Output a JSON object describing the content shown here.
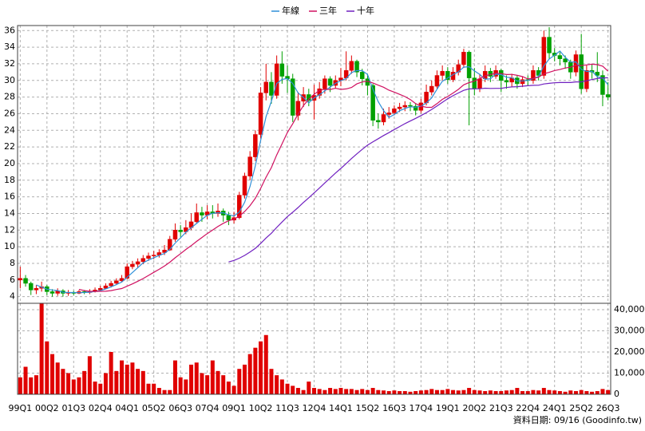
{
  "chart_data": {
    "type": "candlestick",
    "legend": "top",
    "grid": true,
    "categories": [
      "99Q1",
      null,
      null,
      null,
      null,
      "00Q2",
      null,
      null,
      null,
      null,
      "01Q3",
      null,
      null,
      null,
      null,
      "02Q4",
      null,
      null,
      null,
      null,
      "04Q1",
      null,
      null,
      null,
      null,
      "05Q2",
      null,
      null,
      null,
      null,
      "06Q3",
      null,
      null,
      null,
      null,
      "07Q4",
      null,
      null,
      null,
      null,
      "09Q1",
      null,
      null,
      null,
      null,
      "10Q2",
      null,
      null,
      null,
      null,
      "11Q3",
      null,
      null,
      null,
      null,
      "12Q4",
      null,
      null,
      null,
      null,
      "14Q1",
      null,
      null,
      null,
      null,
      "15Q2",
      null,
      null,
      null,
      null,
      "16Q3",
      null,
      null,
      null,
      null,
      "17Q4",
      null,
      null,
      null,
      null,
      "19Q1",
      null,
      null,
      null,
      null,
      "20Q2",
      null,
      null,
      null,
      null,
      "21Q3",
      null,
      null,
      null,
      null,
      "22Q4",
      null,
      null,
      null,
      null,
      "24Q1",
      null,
      null,
      null,
      null,
      "25Q2",
      null,
      null,
      null,
      null,
      "26Q3"
    ],
    "open": [
      6.0,
      6.2,
      5.6,
      4.8,
      5.0,
      5.2,
      4.6,
      4.4,
      4.7,
      4.4,
      4.5,
      4.4,
      4.6,
      4.5,
      4.6,
      4.8,
      5.0,
      5.3,
      5.6,
      5.9,
      6.2,
      7.6,
      7.9,
      8.2,
      8.6,
      8.9,
      9.0,
      9.3,
      9.6,
      10.9,
      12.0,
      11.8,
      12.3,
      13.0,
      14.1,
      13.8,
      14.2,
      14.0,
      14.3,
      13.8,
      13.2,
      13.5,
      16.2,
      18.5,
      20.8,
      23.5,
      28.5,
      29.8,
      28.2,
      32.0,
      30.5,
      30.2,
      25.8,
      27.5,
      28.3,
      27.6,
      28.2,
      29.0,
      30.2,
      29.4,
      30.0,
      30.3,
      31.2,
      32.3,
      31.0,
      30.2,
      29.4,
      25.2,
      25.0,
      25.9,
      26.1,
      26.6,
      26.8,
      27.0,
      26.9,
      26.4,
      27.3,
      28.6,
      29.3,
      30.6,
      31.1,
      30.1,
      31.0,
      31.9,
      33.4,
      30.3,
      29.0,
      30.2,
      31.1,
      30.5,
      31.2,
      30.0,
      29.8,
      30.3,
      29.6,
      30.1,
      30.0,
      31.2,
      30.6,
      35.2,
      33.3,
      33.0,
      32.6,
      32.2,
      31.0,
      33.1,
      29.0,
      31.2,
      31.0,
      30.6,
      28.3
    ],
    "high": [
      7.6,
      6.6,
      5.8,
      5.4,
      5.8,
      5.4,
      4.9,
      5.0,
      4.9,
      4.8,
      4.7,
      4.8,
      4.8,
      4.9,
      5.1,
      5.3,
      5.6,
      5.9,
      6.2,
      6.6,
      8.0,
      8.3,
      8.6,
      9.0,
      9.3,
      9.5,
      9.7,
      10.2,
      11.3,
      12.8,
      12.6,
      13.2,
      14.0,
      15.2,
      14.8,
      15.0,
      15.0,
      15.2,
      14.6,
      14.2,
      14.2,
      16.6,
      18.9,
      21.5,
      24.0,
      29.2,
      32.0,
      31.0,
      33.0,
      33.5,
      31.8,
      30.8,
      28.6,
      29.2,
      29.0,
      29.5,
      29.8,
      30.6,
      30.5,
      30.6,
      31.5,
      33.5,
      33.0,
      32.5,
      31.4,
      30.8,
      29.6,
      26.0,
      26.6,
      26.8,
      27.0,
      27.3,
      27.5,
      27.4,
      27.2,
      27.8,
      29.5,
      30.0,
      31.2,
      31.8,
      31.6,
      31.6,
      32.5,
      33.8,
      33.6,
      31.5,
      30.8,
      31.8,
      31.5,
      31.8,
      31.4,
      30.6,
      30.8,
      30.6,
      30.5,
      30.6,
      31.8,
      31.6,
      36.0,
      36.4,
      33.9,
      33.4,
      33.0,
      32.5,
      33.6,
      35.6,
      31.8,
      32.0,
      33.4,
      31.2,
      29.8
    ],
    "low": [
      5.0,
      5.2,
      4.2,
      4.3,
      4.6,
      4.2,
      4.0,
      4.1,
      4.0,
      4.1,
      4.2,
      4.3,
      4.3,
      4.3,
      4.5,
      4.7,
      4.9,
      5.1,
      5.4,
      5.7,
      6.1,
      7.3,
      7.5,
      7.9,
      8.3,
      8.5,
      8.7,
      9.0,
      9.5,
      10.6,
      11.2,
      11.5,
      12.0,
      12.8,
      13.0,
      13.3,
      13.4,
      13.6,
      13.0,
      12.6,
      12.8,
      13.3,
      15.8,
      18.0,
      20.3,
      23.0,
      27.6,
      27.2,
      27.8,
      29.6,
      28.5,
      25.0,
      25.2,
      26.8,
      26.9,
      25.3,
      27.8,
      28.4,
      28.6,
      29.0,
      29.3,
      30.0,
      30.8,
      30.4,
      29.4,
      28.2,
      24.5,
      24.2,
      24.6,
      25.4,
      25.8,
      26.2,
      26.3,
      26.3,
      25.8,
      26.1,
      27.0,
      28.2,
      29.0,
      30.0,
      29.6,
      29.8,
      30.6,
      31.5,
      24.6,
      28.2,
      28.6,
      29.8,
      29.8,
      30.2,
      28.6,
      29.0,
      29.2,
      29.0,
      29.2,
      29.4,
      29.6,
      30.0,
      30.2,
      32.6,
      32.3,
      31.8,
      31.4,
      30.2,
      30.5,
      28.4,
      28.6,
      30.2,
      29.8,
      26.9,
      27.6
    ],
    "close": [
      6.2,
      5.6,
      4.8,
      5.0,
      5.2,
      4.6,
      4.4,
      4.7,
      4.4,
      4.5,
      4.4,
      4.6,
      4.5,
      4.6,
      4.8,
      5.0,
      5.3,
      5.6,
      5.9,
      6.2,
      7.6,
      7.9,
      8.2,
      8.6,
      8.9,
      9.0,
      9.3,
      9.6,
      10.9,
      12.0,
      11.8,
      12.3,
      13.0,
      14.1,
      13.8,
      14.2,
      14.0,
      14.3,
      13.8,
      13.2,
      13.5,
      16.2,
      18.5,
      20.8,
      23.5,
      28.5,
      29.8,
      28.2,
      32.0,
      30.5,
      30.2,
      25.8,
      27.5,
      28.3,
      27.6,
      28.2,
      29.0,
      30.2,
      29.4,
      30.0,
      30.3,
      31.2,
      32.3,
      31.0,
      30.2,
      29.4,
      25.2,
      25.0,
      25.9,
      26.1,
      26.6,
      26.8,
      27.0,
      26.9,
      26.4,
      27.3,
      28.6,
      29.3,
      30.6,
      31.1,
      30.1,
      31.0,
      31.9,
      33.4,
      30.3,
      29.0,
      30.2,
      31.1,
      30.5,
      31.2,
      30.0,
      29.8,
      30.3,
      29.6,
      30.1,
      30.0,
      31.2,
      30.6,
      35.2,
      33.3,
      33.0,
      32.6,
      32.2,
      31.0,
      33.1,
      29.0,
      31.2,
      31.0,
      30.6,
      28.3,
      28.0
    ],
    "up_color": "#e00000",
    "down_color": "#00a000",
    "ylim": [
      3.2,
      36.6
    ],
    "yticks": [
      4,
      6,
      8,
      10,
      12,
      14,
      16,
      18,
      20,
      22,
      24,
      26,
      28,
      30,
      32,
      34,
      36
    ],
    "series": [
      {
        "name": "年線",
        "color": "#2f8fd8",
        "values": [
          null,
          null,
          null,
          5.4,
          5.15,
          4.9,
          4.8,
          4.73,
          4.53,
          4.5,
          4.5,
          4.48,
          4.5,
          4.53,
          4.63,
          4.73,
          4.93,
          5.18,
          5.45,
          5.75,
          6.33,
          6.9,
          7.48,
          8.08,
          8.4,
          8.68,
          8.95,
          9.2,
          9.7,
          10.45,
          11.08,
          11.75,
          12.28,
          12.8,
          13.3,
          13.78,
          14.03,
          14.08,
          14.08,
          13.83,
          13.7,
          14.18,
          15.35,
          17.25,
          19.75,
          22.83,
          25.65,
          27.5,
          29.63,
          30.13,
          30.23,
          29.63,
          28.5,
          27.95,
          27.3,
          27.9,
          28.28,
          28.75,
          29.2,
          29.65,
          29.98,
          30.23,
          30.95,
          31.2,
          31.18,
          30.73,
          28.95,
          27.45,
          26.38,
          25.55,
          25.9,
          26.35,
          26.63,
          26.83,
          26.78,
          26.9,
          27.3,
          27.9,
          28.95,
          29.9,
          30.28,
          30.7,
          31.03,
          31.6,
          31.65,
          31.15,
          30.73,
          30.15,
          30.2,
          30.75,
          30.7,
          30.38,
          30.33,
          29.93,
          29.95,
          30.0,
          30.23,
          30.48,
          31.75,
          32.58,
          33.03,
          33.53,
          32.78,
          32.2,
          32.23,
          31.33,
          31.08,
          31.08,
          30.45,
          30.28,
          29.48
        ]
      },
      {
        "name": "三年",
        "color": "#d01060",
        "values": [
          null,
          null,
          null,
          null,
          null,
          null,
          null,
          null,
          null,
          null,
          null,
          4.87,
          4.73,
          4.64,
          4.64,
          4.64,
          4.65,
          4.73,
          4.86,
          4.98,
          5.25,
          5.53,
          5.85,
          6.18,
          6.55,
          6.92,
          7.29,
          7.68,
          8.14,
          8.68,
          9.17,
          9.68,
          10.13,
          10.64,
          11.11,
          11.58,
          12.0,
          12.44,
          12.82,
          13.12,
          13.33,
          13.68,
          14.24,
          14.95,
          15.83,
          17.03,
          18.36,
          19.53,
          21.03,
          22.38,
          23.74,
          24.79,
          25.96,
          26.97,
          27.73,
          28.34,
          28.8,
          28.94,
          28.91,
          29.06,
          28.92,
          28.98,
          29.15,
          29.58,
          29.81,
          29.9,
          29.7,
          29.43,
          29.18,
          28.83,
          28.6,
          28.33,
          28.06,
          27.7,
          27.21,
          26.9,
          26.77,
          26.76,
          27.21,
          27.72,
          28.07,
          28.48,
          28.92,
          29.47,
          29.74,
          29.92,
          30.23,
          30.55,
          30.71,
          30.87,
          30.82,
          30.71,
          30.73,
          30.61,
          30.46,
          30.18,
          30.25,
          30.38,
          30.8,
          30.98,
          31.19,
          31.31,
          31.49,
          31.59,
          31.83,
          31.78,
          31.87,
          31.95,
          31.9,
          31.71,
          31.11
        ]
      },
      {
        "name": "十年",
        "color": "#7020c0",
        "values": [
          null,
          null,
          null,
          null,
          null,
          null,
          null,
          null,
          null,
          null,
          null,
          null,
          null,
          null,
          null,
          null,
          null,
          null,
          null,
          null,
          null,
          null,
          null,
          null,
          null,
          null,
          null,
          null,
          null,
          null,
          null,
          null,
          null,
          null,
          null,
          null,
          null,
          null,
          null,
          8.17,
          8.35,
          8.62,
          8.96,
          9.36,
          9.81,
          10.41,
          11.05,
          11.63,
          12.32,
          12.97,
          13.62,
          14.15,
          14.72,
          15.32,
          15.89,
          16.47,
          17.06,
          17.67,
          18.26,
          18.86,
          19.42,
          20.01,
          20.61,
          21.17,
          21.7,
          22.21,
          22.61,
          22.99,
          23.37,
          23.72,
          24.09,
          24.45,
          24.8,
          25.12,
          25.44,
          25.77,
          26.13,
          26.51,
          26.93,
          27.37,
          27.79,
          28.16,
          28.49,
          28.81,
          28.98,
          28.99,
          29.0,
          29.07,
          29.04,
          29.05,
          29.05,
          29.15,
          29.22,
          29.25,
          29.31,
          29.36,
          29.41,
          29.42,
          29.57,
          29.65,
          29.72,
          29.75,
          29.75,
          29.75,
          29.82,
          29.81,
          29.96,
          30.11,
          30.23,
          30.29,
          30.32
        ]
      }
    ],
    "volume": {
      "color": "#e00000",
      "values": [
        8000,
        13000,
        8000,
        9000,
        43000,
        25000,
        19000,
        15000,
        12000,
        10000,
        7000,
        8000,
        11000,
        18000,
        6000,
        5000,
        10000,
        20000,
        11000,
        16000,
        14000,
        15000,
        12000,
        11000,
        5000,
        5000,
        3000,
        2000,
        2000,
        16000,
        8000,
        7000,
        14000,
        15000,
        10000,
        9000,
        16000,
        11000,
        9000,
        6000,
        4000,
        12000,
        14000,
        19000,
        22000,
        25000,
        28000,
        12000,
        9000,
        7000,
        5000,
        4000,
        3000,
        2000,
        6000,
        3000,
        2500,
        2000,
        3000,
        2500,
        3000,
        2500,
        2500,
        2000,
        2500,
        2000,
        3000,
        2000,
        1800,
        1500,
        1800,
        1500,
        1500,
        1200,
        1500,
        1800,
        2000,
        2500,
        2000,
        2000,
        2500,
        2000,
        1800,
        2000,
        3000,
        2000,
        1800,
        1500,
        1800,
        1500,
        1500,
        1800,
        2000,
        3000,
        1500,
        1500,
        2000,
        1800,
        3000,
        2000,
        1800,
        1500,
        1200,
        1800,
        1500,
        2000,
        1500,
        1200,
        1500,
        2500,
        2000
      ],
      "ylim": [
        0,
        43000
      ],
      "yticks": [
        0,
        {
          "value": 10000,
          "label": "10,000"
        },
        {
          "value": 20000,
          "label": "20,000"
        },
        {
          "value": 30000,
          "label": "30,000"
        },
        {
          "value": 40000,
          "label": "40,000"
        }
      ]
    },
    "source_note": "資料日期: 09/16  (Goodinfo.tw)"
  }
}
